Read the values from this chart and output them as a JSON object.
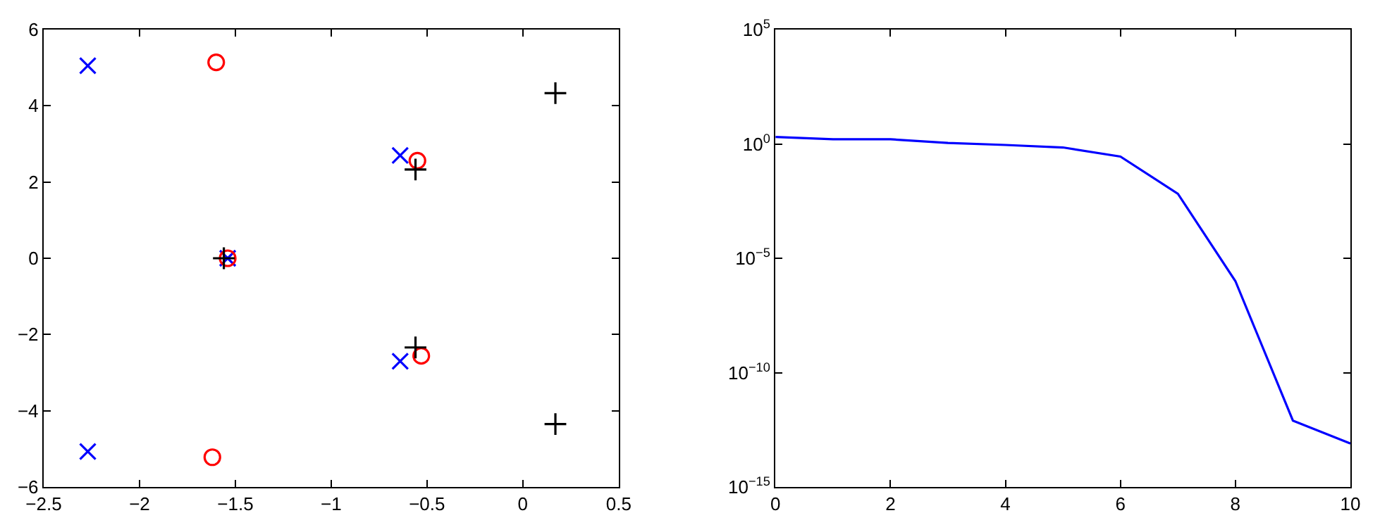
{
  "chart_data": [
    {
      "type": "scatter",
      "xlim": [
        -2.5,
        0.5
      ],
      "xticks": [
        -2.5,
        -2,
        -1.5,
        -1,
        -0.5,
        0,
        0.5
      ],
      "ylim": [
        -6,
        6
      ],
      "yticks": [
        -6,
        -4,
        -2,
        0,
        2,
        4,
        6
      ],
      "series": [
        {
          "color": "#0000ff",
          "marker": "x",
          "x": [
            -2.27,
            -0.64,
            -1.54,
            -0.64,
            -2.27
          ],
          "values": [
            5.05,
            2.7,
            0,
            -2.7,
            -5.07
          ]
        },
        {
          "color": "#ff0000",
          "marker": "circle",
          "x": [
            -1.6,
            -0.55,
            -1.54,
            -0.53,
            -1.62
          ],
          "values": [
            5.14,
            2.56,
            0,
            -2.56,
            -5.22
          ]
        },
        {
          "color": "#000000",
          "marker": "cross",
          "x": [
            0.17,
            -0.56,
            -1.56,
            -0.56,
            0.17
          ],
          "values": [
            4.33,
            2.33,
            0,
            -2.34,
            -4.35
          ]
        }
      ]
    },
    {
      "type": "line",
      "log": "y",
      "xlim": [
        0,
        10
      ],
      "xticks": [
        0,
        2,
        4,
        6,
        8,
        10
      ],
      "ylim": [
        1e-15,
        100000.0
      ],
      "yticks": [
        {
          "value": 1e-15,
          "label": "10$^{−15}$"
        },
        {
          "value": 1e-10,
          "label": "10$^{−10}$"
        },
        {
          "value": 1e-05,
          "label": "10$^{−5}$"
        },
        {
          "value": 1,
          "label": "10$^{0}$"
        },
        {
          "value": 100000.0,
          "label": "10$^{5}$"
        }
      ],
      "marker": "none",
      "line_style": "solid",
      "x": [
        0,
        1,
        2,
        3,
        4,
        5,
        6,
        7,
        8,
        9,
        10
      ],
      "series": [
        {
          "color": "#0000ff",
          "values": [
            2,
            1.6,
            1.6,
            1.1,
            0.9,
            0.7,
            0.28,
            0.0066,
            1e-06,
            8e-13,
            8e-14
          ]
        }
      ]
    }
  ]
}
